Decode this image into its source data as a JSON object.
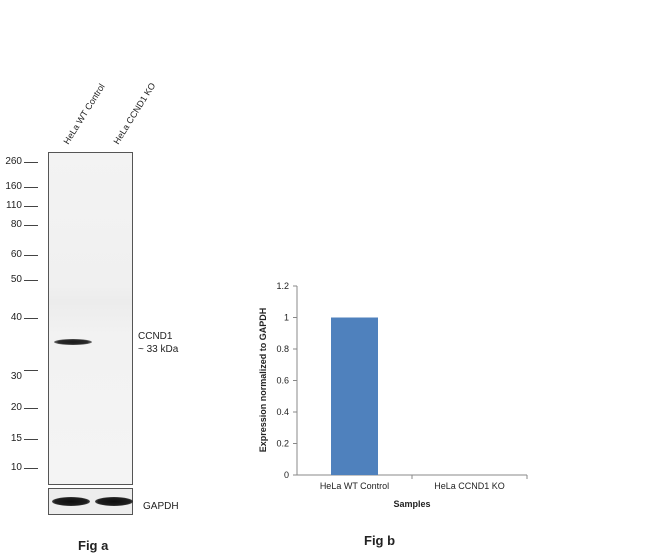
{
  "fig_a": {
    "lane_labels": [
      "HeLa WT Control",
      "HeLa CCND1 KO"
    ],
    "mw_markers": [
      "260",
      "160",
      "110",
      "80",
      "60",
      "50",
      "40",
      "30",
      "20",
      "15",
      "10"
    ],
    "band_annotation": {
      "name": "CCND1",
      "size": "~ 33 kDa"
    },
    "loading_control": "GAPDH",
    "label": "Fig a"
  },
  "fig_b": {
    "label": "Fig b"
  },
  "chart_data": {
    "type": "bar",
    "categories": [
      "HeLa WT Control",
      "HeLa CCND1 KO"
    ],
    "values": [
      1.0,
      0.0
    ],
    "title": "",
    "xlabel": "Samples",
    "ylabel": "Expression  normalized to GAPDH",
    "ylim": [
      0,
      1.2
    ],
    "yticks": [
      "0",
      "0.2",
      "0.4",
      "0.6",
      "0.8",
      "1",
      "1.2"
    ],
    "bar_color": "#4f81bd",
    "grid": false,
    "legend": "none"
  }
}
